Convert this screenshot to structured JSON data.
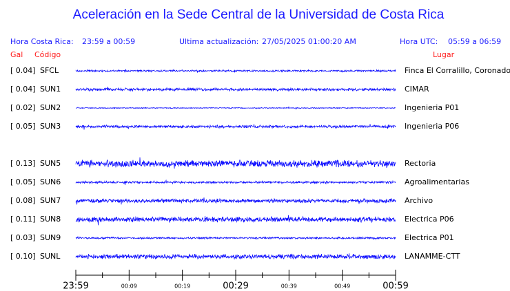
{
  "header": {
    "title": "Aceleración en la Sede Central de la Universidad de Costa Rica",
    "local_label": "Hora Costa Rica:",
    "local_range": "23:59 a 00:59",
    "update_label": "Ultima actualización:",
    "update_time": "27/05/2025 01:00:20 AM",
    "utc_label": "Hora UTC:",
    "utc_range": "05:59 a 06:59"
  },
  "columns": {
    "gal": "Gal",
    "code": "Código",
    "place": "Lugar"
  },
  "stations": [
    {
      "gal": "[  0.04]",
      "code": "SFCL",
      "place": "Finca El Corralillo, Coronado"
    },
    {
      "gal": "[  0.04]",
      "code": "SUN1",
      "place": "CIMAR"
    },
    {
      "gal": "[  0.02]",
      "code": "SUN2",
      "place": "Ingenieria P01"
    },
    {
      "gal": "[  0.05]",
      "code": "SUN3",
      "place": "Ingenieria P06"
    },
    {
      "gal": "[  0.13]",
      "code": "SUN5",
      "place": "Rectoria"
    },
    {
      "gal": "[  0.05]",
      "code": "SUN6",
      "place": "Agroalimentarias"
    },
    {
      "gal": "[  0.08]",
      "code": "SUN7",
      "place": "Archivo"
    },
    {
      "gal": "[  0.11]",
      "code": "SUN8",
      "place": "Electrica P06"
    },
    {
      "gal": "[  0.03]",
      "code": "SUN9",
      "place": "Electrica P01"
    },
    {
      "gal": "[  0.10]",
      "code": "SUNL",
      "place": "LANAMME-CTT"
    }
  ],
  "time_axis": {
    "ticks": [
      {
        "label": "23:59",
        "major": true
      },
      {
        "label": "00:09",
        "major": false
      },
      {
        "label": "00:19",
        "major": false
      },
      {
        "label": "00:29",
        "major": true
      },
      {
        "label": "00:39",
        "major": false
      },
      {
        "label": "00:49",
        "major": false
      },
      {
        "label": "00:59",
        "major": true
      }
    ]
  }
}
